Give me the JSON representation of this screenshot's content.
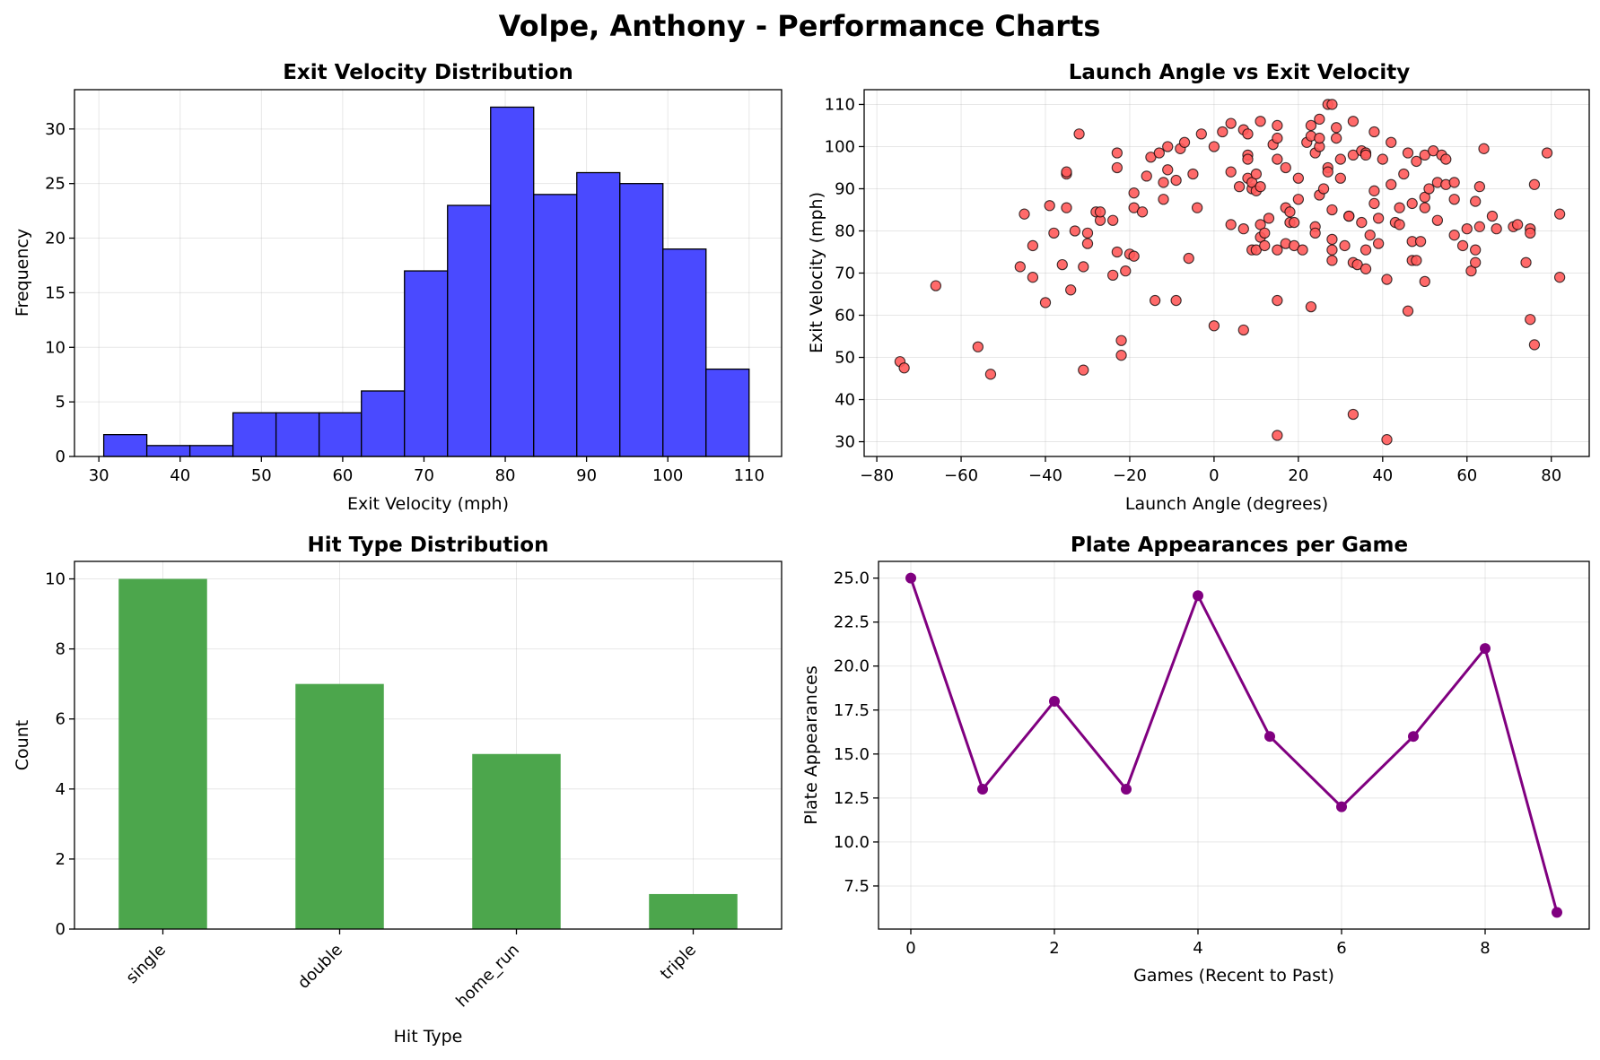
{
  "suptitle": "Volpe, Anthony - Performance Charts",
  "colors": {
    "histogram_fill": "#4a4aff",
    "scatter_fill": "#ff5a5a",
    "bar_fill": "#4ca64c",
    "line": "#800080"
  },
  "chart_data": [
    {
      "type": "bar",
      "subtype": "histogram",
      "title": "Exit Velocity Distribution",
      "xlabel": "Exit Velocity (mph)",
      "ylabel": "Frequency",
      "xlim": [
        27,
        114
      ],
      "ylim": [
        0,
        33.6
      ],
      "xticks": [
        30,
        40,
        50,
        60,
        70,
        80,
        90,
        100,
        110
      ],
      "yticks": [
        0,
        5,
        10,
        15,
        20,
        25,
        30
      ],
      "grid": true,
      "bin_edges": [
        30.6,
        35.9,
        41.2,
        46.5,
        51.8,
        57.1,
        62.3,
        67.6,
        72.9,
        78.2,
        83.5,
        88.8,
        94.1,
        99.4,
        104.7,
        110.0
      ],
      "values": [
        2,
        1,
        1,
        4,
        4,
        4,
        6,
        17,
        23,
        32,
        24,
        26,
        25,
        19,
        8
      ]
    },
    {
      "type": "scatter",
      "title": "Launch Angle vs Exit Velocity",
      "xlabel": "Launch Angle (degrees)",
      "ylabel": "Exit Velocity (mph)",
      "xlim": [
        -83,
        89
      ],
      "ylim": [
        26.5,
        113.5
      ],
      "xticks": [
        -80,
        -60,
        -40,
        -20,
        0,
        20,
        40,
        60,
        80
      ],
      "yticks": [
        30,
        40,
        50,
        60,
        70,
        80,
        90,
        100,
        110
      ],
      "grid": true,
      "points": [
        [
          -74.5,
          49
        ],
        [
          -73.5,
          47.5
        ],
        [
          -66,
          67
        ],
        [
          -56,
          52.5
        ],
        [
          -53,
          46
        ],
        [
          -46,
          71.5
        ],
        [
          -45,
          84
        ],
        [
          -43,
          69
        ],
        [
          -43,
          76.5
        ],
        [
          -40,
          63
        ],
        [
          -39,
          86
        ],
        [
          -38,
          79.5
        ],
        [
          -36,
          72
        ],
        [
          -35,
          85.5
        ],
        [
          -35,
          93.5
        ],
        [
          -35,
          94
        ],
        [
          -34,
          66
        ],
        [
          -33,
          80
        ],
        [
          -32,
          103
        ],
        [
          -31,
          71.5
        ],
        [
          -31,
          47
        ],
        [
          -30,
          77
        ],
        [
          -30,
          79.5
        ],
        [
          -28,
          84.5
        ],
        [
          -27,
          82.5
        ],
        [
          -27,
          84.5
        ],
        [
          -24,
          82.5
        ],
        [
          -24,
          69.5
        ],
        [
          -23,
          75
        ],
        [
          -23,
          95
        ],
        [
          -23,
          98.5
        ],
        [
          -22,
          54
        ],
        [
          -22,
          50.5
        ],
        [
          -21,
          70.5
        ],
        [
          -20,
          74.5
        ],
        [
          -19,
          74
        ],
        [
          -19,
          85.5
        ],
        [
          -19,
          89
        ],
        [
          -17,
          84.5
        ],
        [
          -16,
          93
        ],
        [
          -15,
          97.5
        ],
        [
          -14,
          63.5
        ],
        [
          -13,
          98.5
        ],
        [
          -12,
          91.5
        ],
        [
          -12,
          87.5
        ],
        [
          -11,
          94.5
        ],
        [
          -11,
          100
        ],
        [
          -9,
          63.5
        ],
        [
          -9,
          92
        ],
        [
          -8,
          99.5
        ],
        [
          -7,
          101
        ],
        [
          -6,
          73.5
        ],
        [
          -5,
          93.5
        ],
        [
          -4,
          85.5
        ],
        [
          -3,
          103
        ],
        [
          0,
          100
        ],
        [
          0,
          57.5
        ],
        [
          2,
          103.5
        ],
        [
          4,
          94
        ],
        [
          4,
          81.5
        ],
        [
          4,
          105.5
        ],
        [
          6,
          90.5
        ],
        [
          7,
          56.5
        ],
        [
          7,
          104
        ],
        [
          7,
          80.5
        ],
        [
          8,
          103
        ],
        [
          8,
          98
        ],
        [
          8,
          97
        ],
        [
          8,
          92.5
        ],
        [
          9,
          90
        ],
        [
          9,
          75.5
        ],
        [
          9,
          91.5
        ],
        [
          10,
          75.5
        ],
        [
          10,
          93.5
        ],
        [
          10,
          89.5
        ],
        [
          11,
          90.5
        ],
        [
          11,
          81.5
        ],
        [
          11,
          106
        ],
        [
          11,
          78.5
        ],
        [
          12,
          79.5
        ],
        [
          12,
          76.5
        ],
        [
          13,
          83
        ],
        [
          14,
          100.5
        ],
        [
          15,
          105
        ],
        [
          15,
          102
        ],
        [
          15,
          97
        ],
        [
          15,
          75.5
        ],
        [
          15,
          63.5
        ],
        [
          15,
          31.5
        ],
        [
          17,
          95
        ],
        [
          17,
          85.5
        ],
        [
          17,
          77
        ],
        [
          18,
          84.5
        ],
        [
          18,
          82
        ],
        [
          19,
          76.5
        ],
        [
          19,
          82
        ],
        [
          20,
          92.5
        ],
        [
          20,
          87.5
        ],
        [
          21,
          75.5
        ],
        [
          22,
          101
        ],
        [
          23,
          102.5
        ],
        [
          23,
          105
        ],
        [
          23,
          62
        ],
        [
          24,
          98.5
        ],
        [
          24,
          81
        ],
        [
          24,
          79.5
        ],
        [
          25,
          88.5
        ],
        [
          25,
          100
        ],
        [
          25,
          106.5
        ],
        [
          25,
          102
        ],
        [
          26,
          90
        ],
        [
          27,
          110
        ],
        [
          27,
          95
        ],
        [
          27,
          94
        ],
        [
          28,
          110
        ],
        [
          28,
          85
        ],
        [
          28,
          78
        ],
        [
          28,
          75.5
        ],
        [
          28,
          73
        ],
        [
          29,
          104.5
        ],
        [
          29,
          102
        ],
        [
          30,
          97
        ],
        [
          30,
          92.5
        ],
        [
          31,
          76.5
        ],
        [
          32,
          83.5
        ],
        [
          32,
          83.5
        ],
        [
          33,
          106
        ],
        [
          33,
          98
        ],
        [
          33,
          72.5
        ],
        [
          33,
          36.5
        ],
        [
          34,
          72
        ],
        [
          35,
          99
        ],
        [
          35,
          82
        ],
        [
          36,
          98.5
        ],
        [
          36,
          98
        ],
        [
          36,
          75.5
        ],
        [
          36,
          71
        ],
        [
          37,
          79
        ],
        [
          38,
          103.5
        ],
        [
          38,
          89.5
        ],
        [
          38,
          86.5
        ],
        [
          39,
          83
        ],
        [
          39,
          77
        ],
        [
          40,
          97
        ],
        [
          41,
          68.5
        ],
        [
          41,
          30.5
        ],
        [
          42,
          91
        ],
        [
          42,
          101
        ],
        [
          43,
          82
        ],
        [
          44,
          81.5
        ],
        [
          44,
          85.5
        ],
        [
          45,
          93.5
        ],
        [
          46,
          61
        ],
        [
          46,
          98.5
        ],
        [
          47,
          86.5
        ],
        [
          47,
          77.5
        ],
        [
          47,
          73
        ],
        [
          48,
          96.5
        ],
        [
          48,
          73
        ],
        [
          49,
          77.5
        ],
        [
          50,
          98
        ],
        [
          50,
          88
        ],
        [
          50,
          85.5
        ],
        [
          50,
          68
        ],
        [
          51,
          90
        ],
        [
          52,
          99
        ],
        [
          53,
          91.5
        ],
        [
          53,
          82.5
        ],
        [
          54,
          98
        ],
        [
          55,
          97
        ],
        [
          55,
          91
        ],
        [
          57,
          91.5
        ],
        [
          57,
          87.5
        ],
        [
          57,
          79
        ],
        [
          59,
          76.5
        ],
        [
          60,
          80.5
        ],
        [
          61,
          70.5
        ],
        [
          62,
          87
        ],
        [
          62,
          75.5
        ],
        [
          62,
          72.5
        ],
        [
          63,
          90.5
        ],
        [
          63,
          81
        ],
        [
          64,
          99.5
        ],
        [
          66,
          83.5
        ],
        [
          67,
          80.5
        ],
        [
          71,
          81
        ],
        [
          72,
          81.5
        ],
        [
          74,
          72.5
        ],
        [
          75,
          80.5
        ],
        [
          75,
          79.5
        ],
        [
          75,
          59
        ],
        [
          76,
          53
        ],
        [
          76,
          91
        ],
        [
          79,
          98.5
        ],
        [
          82,
          84
        ],
        [
          82,
          69
        ]
      ]
    },
    {
      "type": "bar",
      "title": "Hit Type Distribution",
      "xlabel": "Hit Type",
      "ylabel": "Count",
      "ylim": [
        0,
        10.5
      ],
      "yticks": [
        0,
        2,
        4,
        6,
        8,
        10
      ],
      "grid": true,
      "categories": [
        "single",
        "double",
        "home_run",
        "triple"
      ],
      "values": [
        10,
        7,
        5,
        1
      ]
    },
    {
      "type": "line",
      "title": "Plate Appearances per Game",
      "xlabel": "Games (Recent to Past)",
      "ylabel": "Plate Appearances",
      "xlim": [
        -0.45,
        9.45
      ],
      "ylim": [
        5.05,
        25.95
      ],
      "xticks": [
        0,
        2,
        4,
        6,
        8
      ],
      "yticks": [
        7.5,
        10.0,
        12.5,
        15.0,
        17.5,
        20.0,
        22.5,
        25.0
      ],
      "grid": true,
      "x": [
        0,
        1,
        2,
        3,
        4,
        5,
        6,
        7,
        8,
        9
      ],
      "values": [
        25,
        13,
        18,
        13,
        24,
        16,
        12,
        16,
        21,
        6
      ]
    }
  ]
}
